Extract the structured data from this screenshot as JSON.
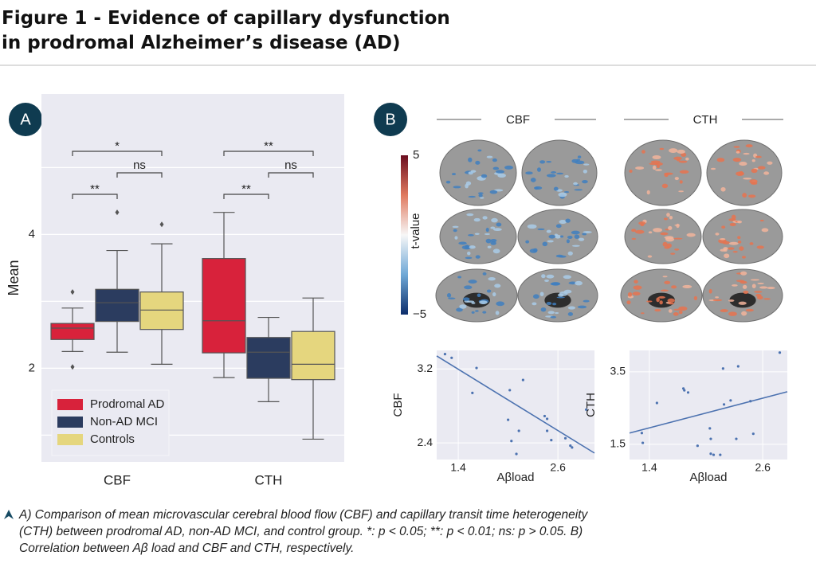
{
  "header": {
    "title_lines": [
      "Figure 1 - Evidence of capillary dysfunction",
      "in prodromal Alzheimer’s disease (AD)"
    ]
  },
  "panels": [
    "A",
    "B"
  ],
  "brain": {
    "columns": [
      "CBF",
      "CTH"
    ],
    "colorbar": {
      "label": "t-value",
      "ticks": [
        5,
        {
          "value": -5,
          "label": "−5"
        }
      ],
      "lim": [
        -5,
        5
      ]
    }
  },
  "chart_data": [
    {
      "type": "box",
      "ylabel": "Mean",
      "categories": [
        "CBF",
        "CTH"
      ],
      "ylim": [
        0.6,
        6.1
      ],
      "yticks": [
        2,
        4
      ],
      "minor_grid": [
        1,
        3,
        5
      ],
      "legend": "lower left",
      "series": [
        {
          "name": "Prodromal AD",
          "color": "#d8223b",
          "values": [
            {
              "min": 2.25,
              "q1": 2.43,
              "median": 2.6,
              "q3": 2.67,
              "max": 2.9,
              "outliers": [
                3.14,
                2.02
              ]
            },
            {
              "min": 1.86,
              "q1": 2.23,
              "median": 2.71,
              "q3": 3.64,
              "max": 4.33,
              "outliers": []
            }
          ]
        },
        {
          "name": "Non-AD MCI",
          "color": "#2b3c5f",
          "values": [
            {
              "min": 2.24,
              "q1": 2.7,
              "median": 2.98,
              "q3": 3.18,
              "max": 3.76,
              "outliers": [
                4.33
              ]
            },
            {
              "min": 1.5,
              "q1": 1.85,
              "median": 2.24,
              "q3": 2.46,
              "max": 2.76,
              "outliers": []
            }
          ]
        },
        {
          "name": "Controls",
          "color": "#e5d67e",
          "values": [
            {
              "min": 2.06,
              "q1": 2.58,
              "median": 2.87,
              "q3": 3.14,
              "max": 3.86,
              "outliers": [
                4.15
              ]
            },
            {
              "min": 0.94,
              "q1": 1.83,
              "median": 2.06,
              "q3": 2.55,
              "max": 3.05,
              "outliers": []
            }
          ]
        }
      ],
      "brackets": [
        {
          "category": "CBF",
          "groups": [
            "Prodromal AD",
            "Non-AD MCI"
          ],
          "text": "**"
        },
        {
          "category": "CBF",
          "groups": [
            "Non-AD MCI",
            "Controls"
          ],
          "text": "ns"
        },
        {
          "category": "CBF",
          "groups": [
            "Prodromal AD",
            "Controls"
          ],
          "text": "*"
        },
        {
          "category": "CTH",
          "groups": [
            "Prodromal AD",
            "Non-AD MCI"
          ],
          "text": "**"
        },
        {
          "category": "CTH",
          "groups": [
            "Non-AD MCI",
            "Controls"
          ],
          "text": "ns"
        },
        {
          "category": "CTH",
          "groups": [
            "Prodromal AD",
            "Controls"
          ],
          "text": "**"
        }
      ]
    },
    {
      "type": "scatter",
      "xlabel": "Aβload",
      "ylabel": "CBF",
      "color": "#4c72b0",
      "xlim": [
        1.14,
        3.04
      ],
      "xticks": [
        1.4,
        2.6
      ],
      "ylim": [
        2.22,
        3.4
      ],
      "yticks": [
        3.2,
        2.4
      ],
      "x": [
        1.24,
        1.32,
        1.62,
        1.57,
        2.02,
        2.18,
        2.0,
        2.04,
        2.13,
        2.1,
        2.44,
        2.47,
        2.47,
        2.52,
        2.69,
        2.75,
        2.77,
        2.94
      ],
      "y": [
        3.36,
        3.32,
        3.21,
        2.94,
        2.97,
        3.08,
        2.65,
        2.42,
        2.53,
        2.28,
        2.69,
        2.66,
        2.53,
        2.43,
        2.45,
        2.37,
        2.35,
        2.76
      ],
      "fit": {
        "x": [
          1.14,
          3.04
        ],
        "y": [
          3.34,
          2.29
        ]
      }
    },
    {
      "type": "scatter",
      "xlabel": "Aβload",
      "ylabel": "CTH",
      "color": "#4c72b0",
      "xlim": [
        1.19,
        2.86
      ],
      "xticks": [
        1.4,
        2.6
      ],
      "ylim": [
        1.08,
        4.09
      ],
      "yticks": [
        3.5,
        1.5
      ],
      "x": [
        1.32,
        1.33,
        1.48,
        1.76,
        1.77,
        1.81,
        1.91,
        2.04,
        2.05,
        2.05,
        2.08,
        2.15,
        2.18,
        2.19,
        2.26,
        2.34,
        2.32,
        2.47,
        2.5,
        2.78
      ],
      "y": [
        1.81,
        1.54,
        2.64,
        3.04,
        2.99,
        2.93,
        1.46,
        1.94,
        1.65,
        1.24,
        1.21,
        1.21,
        3.59,
        2.6,
        2.71,
        3.65,
        1.65,
        2.69,
        1.79,
        4.03
      ],
      "fit": {
        "x": [
          1.19,
          2.86
        ],
        "y": [
          1.81,
          2.95
        ]
      }
    }
  ],
  "caption": "A) Comparison of mean microvascular cerebral blood flow (CBF) and capillary transit time heterogeneity (CTH) between prodromal AD, non-AD MCI, and control group. *: p < 0.05; **: p < 0.01; ns: p > 0.05. B) Correlation between Aβ load and CBF and CTH, respectively."
}
